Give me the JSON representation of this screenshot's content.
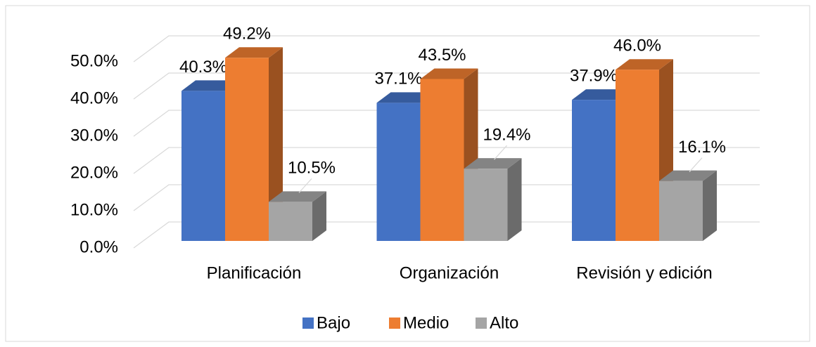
{
  "chart_data": {
    "type": "bar3d",
    "categories": [
      "Planificación",
      "Organización",
      "Revisión y edición"
    ],
    "series": [
      {
        "name": "Bajo",
        "color": "#4472c4",
        "values": [
          40.3,
          37.1,
          37.9
        ],
        "value_labels": [
          "40.3%",
          "37.1%",
          "37.9%"
        ]
      },
      {
        "name": "Medio",
        "color": "#ed7d31",
        "values": [
          49.2,
          43.5,
          46.0
        ],
        "value_labels": [
          "49.2%",
          "43.5%",
          "46.0%"
        ]
      },
      {
        "name": "Alto",
        "color": "#a5a5a5",
        "values": [
          10.5,
          19.4,
          16.1
        ],
        "value_labels": [
          "10.5%",
          "19.4%",
          "16.1%"
        ]
      }
    ],
    "ylim": [
      0,
      50
    ],
    "yticks": [
      {
        "value": 0,
        "label": "0.0%"
      },
      {
        "value": 10,
        "label": "10.0%"
      },
      {
        "value": 20,
        "label": "20.0%"
      },
      {
        "value": 30,
        "label": "30.0%"
      },
      {
        "value": 40,
        "label": "40.0%"
      },
      {
        "value": 50,
        "label": "50.0%"
      }
    ],
    "grid": true,
    "legend": "bottom"
  }
}
